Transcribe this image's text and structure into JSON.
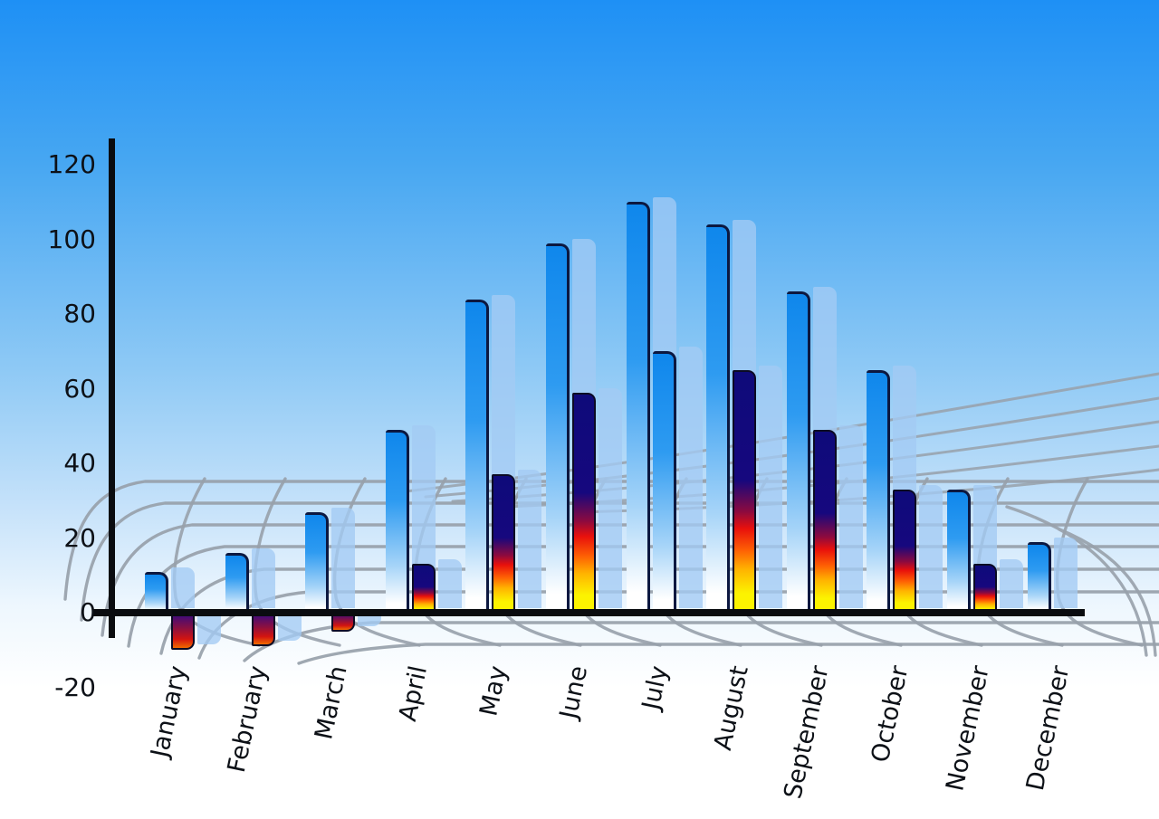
{
  "title": "",
  "colors": {
    "sky_top": "#1e90f5",
    "sky_bottom": "#ffffff",
    "bar_blue_top": "#0f87ec",
    "bar_outline_navy": "#0c1840",
    "shadow_blue": "rgba(163,202,243,0.78)",
    "fire_navy": "#0e0a7a",
    "fire_red": "#e8100c",
    "fire_yellow": "#fcf300",
    "grid_line": "#98a1ab",
    "axis_black": "#0a0c10",
    "label_text": "#0d1117"
  },
  "chart_data": {
    "type": "bar",
    "title": "",
    "xlabel": "",
    "ylabel": "",
    "legend": "none",
    "grid": "curved-perspective-floor",
    "ylim": [
      -20,
      120
    ],
    "y_ticks": [
      120,
      100,
      80,
      60,
      40,
      20,
      0,
      -20
    ],
    "categories": [
      "January",
      "February",
      "March",
      "April",
      "May",
      "June",
      "July",
      "August",
      "September",
      "October",
      "November",
      "December"
    ],
    "series": [
      {
        "name": "primary-blue-bars",
        "style": "blue-gradient",
        "values": [
          11,
          16,
          27,
          49,
          84,
          99,
          110,
          104,
          86,
          65,
          33,
          19
        ]
      },
      {
        "name": "secondary-fire-bars",
        "style": "fire-gradient",
        "values": [
          -10,
          -9,
          -5,
          13,
          37,
          59,
          70,
          65,
          49,
          33,
          13,
          null
        ],
        "style_overrides": {
          "6": "blue-gradient"
        }
      }
    ]
  }
}
